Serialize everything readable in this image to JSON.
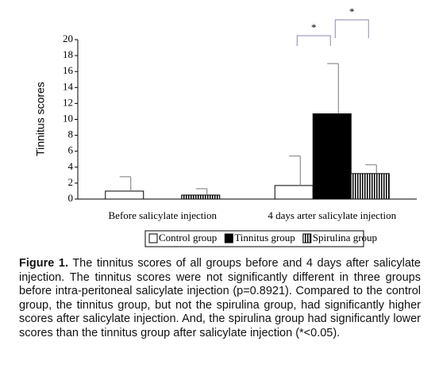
{
  "chart_data": {
    "type": "bar",
    "y_label": "Tinnitus scores",
    "categories": [
      "Before salicylate injection",
      "4 days arter salicylate injection"
    ],
    "series": [
      {
        "name": "Control group",
        "color": "#ffffff",
        "values": [
          1.0,
          1.7
        ],
        "errors": [
          1.8,
          3.7
        ]
      },
      {
        "name": "Tinnitus group",
        "color": "#000000",
        "values": [
          0,
          10.7
        ],
        "errors": [
          0,
          6.3
        ]
      },
      {
        "name": "Spirulina group",
        "color": "#000000",
        "pattern": "vertical-stripes",
        "values": [
          0.5,
          3.2
        ],
        "errors": [
          0.8,
          1.1
        ]
      }
    ],
    "ylim": [
      0,
      20
    ],
    "yticks": [
      0,
      2,
      4,
      6,
      8,
      10,
      12,
      14,
      16,
      18,
      20
    ],
    "grid": false,
    "annotations": [
      "*",
      "*"
    ]
  },
  "caption": {
    "label": "Figure 1.",
    "text": "The tinnitus scores of all groups before and 4 days after salicylate injection. The tinnitus scores were not significantly different in three groups before intra-peritoneal salicylate injection (p=0.8921). Compared to the control group, the tinnitus group, but not the spirulina group, had significantly higher scores after salicylate injection. And, the spirulina group had significantly lower scores than the tinnitus group after salicylate injection (*<0.05)."
  }
}
